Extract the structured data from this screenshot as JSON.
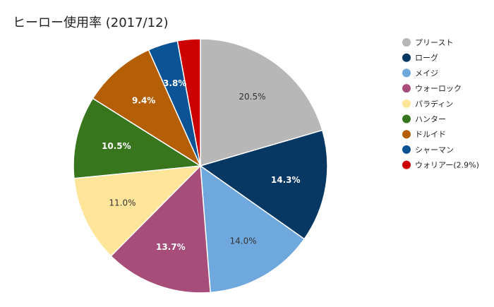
{
  "chart_data": {
    "type": "pie",
    "title": "ヒーロー使用率 (2017/12)",
    "slices": [
      {
        "label": "プリースト",
        "value": 20.5,
        "color": "#b7b7b7",
        "data_label": "20.5%",
        "label_color": "#333333"
      },
      {
        "label": "ローグ",
        "value": 14.3,
        "color": "#073763",
        "data_label": "14.3%",
        "label_color": "#ffffff"
      },
      {
        "label": "メイジ",
        "value": 14.0,
        "color": "#6fa8dc",
        "data_label": "14.0%",
        "label_color": "#333333"
      },
      {
        "label": "ウォーロック",
        "value": 13.7,
        "color": "#a64d79",
        "data_label": "13.7%",
        "label_color": "#ffffff"
      },
      {
        "label": "パラディン",
        "value": 11.0,
        "color": "#ffe599",
        "data_label": "11.0%",
        "label_color": "#333333"
      },
      {
        "label": "ハンター",
        "value": 10.5,
        "color": "#38761d",
        "data_label": "10.5%",
        "label_color": "#ffffff"
      },
      {
        "label": "ドルイド",
        "value": 9.4,
        "color": "#b45f06",
        "data_label": "9.4%",
        "label_color": "#ffffff"
      },
      {
        "label": "シャーマン",
        "value": 3.8,
        "color": "#0b5394",
        "data_label": "3.8%",
        "label_color": "#ffffff"
      },
      {
        "label": "ウォリアー(2.9%)",
        "value": 2.9,
        "color": "#cc0000",
        "data_label": "",
        "label_color": "#ffffff"
      }
    ],
    "start": "12 o'clock",
    "direction": "clockwise",
    "legend_position": "right"
  }
}
